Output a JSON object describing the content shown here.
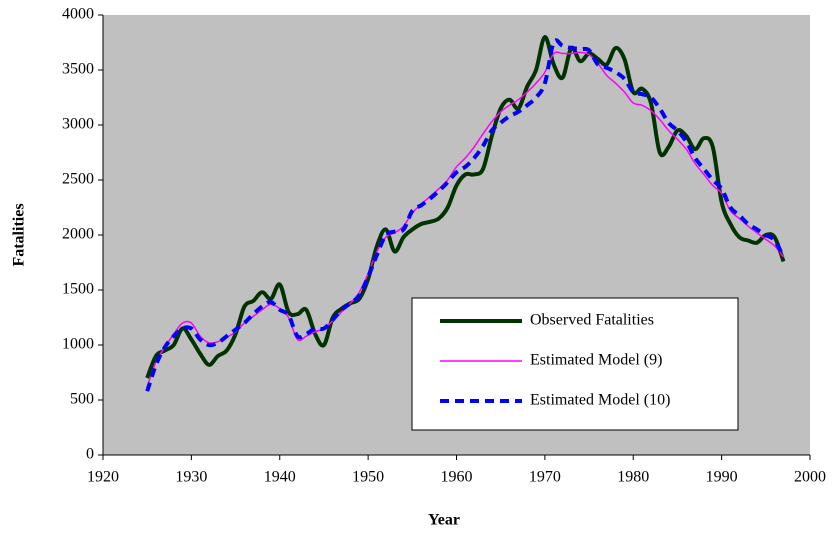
{
  "chart_data": {
    "type": "line",
    "x_label": "Year",
    "y_label": "Fatalities",
    "xlim": [
      1920,
      2000
    ],
    "xticks": [
      1920,
      1930,
      1940,
      1950,
      1960,
      1970,
      1980,
      1990,
      2000
    ],
    "ylim": [
      0,
      4000
    ],
    "yticks": [
      0,
      500,
      1000,
      1500,
      2000,
      2500,
      3000,
      3500,
      4000
    ],
    "background": "#c0c0c0",
    "grid": false,
    "legend": "lower right",
    "x": [
      1925,
      1926,
      1927,
      1928,
      1929,
      1930,
      1931,
      1932,
      1933,
      1934,
      1935,
      1936,
      1937,
      1938,
      1939,
      1940,
      1941,
      1942,
      1943,
      1944,
      1945,
      1946,
      1947,
      1948,
      1949,
      1950,
      1951,
      1952,
      1953,
      1954,
      1955,
      1956,
      1957,
      1958,
      1959,
      1960,
      1961,
      1962,
      1963,
      1964,
      1965,
      1966,
      1967,
      1968,
      1969,
      1970,
      1971,
      1972,
      1973,
      1974,
      1975,
      1976,
      1977,
      1978,
      1979,
      1980,
      1981,
      1982,
      1983,
      1984,
      1985,
      1986,
      1987,
      1988,
      1989,
      1990,
      1991,
      1992,
      1993,
      1994,
      1995,
      1996,
      1997
    ],
    "series": [
      {
        "name": "Observed Fatalities",
        "color": "#003300",
        "style": "solid",
        "width": 4,
        "values": [
          700,
          900,
          950,
          1000,
          1150,
          1050,
          920,
          820,
          900,
          950,
          1100,
          1350,
          1400,
          1480,
          1420,
          1550,
          1300,
          1280,
          1320,
          1100,
          1000,
          1250,
          1330,
          1380,
          1420,
          1600,
          1900,
          2050,
          1850,
          1980,
          2050,
          2100,
          2120,
          2150,
          2250,
          2450,
          2550,
          2550,
          2600,
          2900,
          3150,
          3230,
          3150,
          3350,
          3500,
          3800,
          3550,
          3430,
          3700,
          3580,
          3650,
          3600,
          3550,
          3700,
          3600,
          3300,
          3330,
          3200,
          2750,
          2800,
          2950,
          2900,
          2780,
          2880,
          2800,
          2300,
          2100,
          1980,
          1950,
          1930,
          2000,
          1980,
          1760
        ]
      },
      {
        "name": "Estimated Model (9)",
        "color": "#ff00ff",
        "style": "solid",
        "width": 1.5,
        "values": [
          620,
          850,
          980,
          1100,
          1200,
          1200,
          1080,
          1020,
          1030,
          1070,
          1120,
          1200,
          1260,
          1320,
          1370,
          1330,
          1250,
          1050,
          1080,
          1120,
          1150,
          1220,
          1300,
          1380,
          1480,
          1650,
          1850,
          1980,
          2020,
          2080,
          2200,
          2280,
          2350,
          2420,
          2500,
          2620,
          2700,
          2800,
          2920,
          3030,
          3120,
          3180,
          3230,
          3300,
          3380,
          3480,
          3650,
          3650,
          3650,
          3660,
          3640,
          3560,
          3450,
          3380,
          3300,
          3200,
          3180,
          3130,
          3050,
          2950,
          2870,
          2780,
          2650,
          2550,
          2450,
          2380,
          2220,
          2150,
          2080,
          2020,
          1960,
          1900,
          1800
        ]
      },
      {
        "name": "Estimated Model (10)",
        "color": "#0000ff",
        "style": "dashed",
        "width": 4,
        "values": [
          580,
          820,
          980,
          1080,
          1150,
          1150,
          1050,
          1000,
          1020,
          1080,
          1140,
          1200,
          1280,
          1350,
          1390,
          1320,
          1270,
          1080,
          1100,
          1150,
          1150,
          1230,
          1320,
          1380,
          1450,
          1620,
          1820,
          2000,
          2030,
          2050,
          2220,
          2270,
          2330,
          2400,
          2480,
          2570,
          2620,
          2700,
          2810,
          2950,
          3020,
          3080,
          3120,
          3180,
          3250,
          3380,
          3750,
          3720,
          3700,
          3690,
          3680,
          3550,
          3520,
          3480,
          3420,
          3300,
          3280,
          3250,
          3150,
          3020,
          2950,
          2850,
          2700,
          2600,
          2500,
          2420,
          2250,
          2180,
          2100,
          2050,
          2000,
          1950,
          1800
        ]
      }
    ]
  }
}
